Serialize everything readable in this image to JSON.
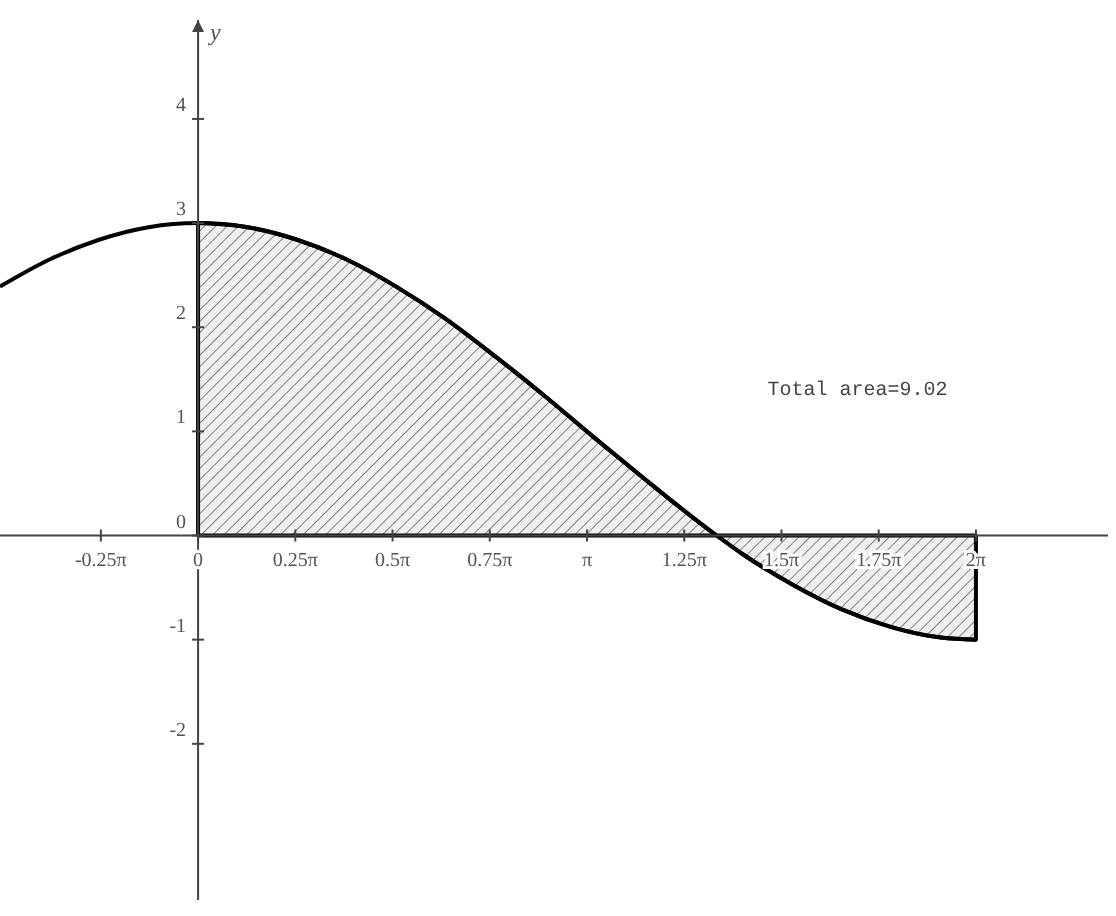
{
  "chart_data": {
    "type": "line",
    "ylabel": "y",
    "xlim": [
      -1.6,
      7.35
    ],
    "ylim": [
      -3.5,
      4.95
    ],
    "xticks": [
      {
        "value": -0.7854,
        "label": "-0.25π"
      },
      {
        "value": 0,
        "label": "0"
      },
      {
        "value": 0.7854,
        "label": "0.25π"
      },
      {
        "value": 1.5708,
        "label": "0.5π"
      },
      {
        "value": 2.3562,
        "label": "0.75π"
      },
      {
        "value": 3.1416,
        "label": "π"
      },
      {
        "value": 3.927,
        "label": "1.25π"
      },
      {
        "value": 4.7124,
        "label": "1.5π"
      },
      {
        "value": 5.4978,
        "label": "1.75π"
      },
      {
        "value": 6.2832,
        "label": "2π"
      }
    ],
    "yticks": [
      -2,
      -1,
      0,
      1,
      2,
      3,
      4
    ],
    "grid": false,
    "marker": "none",
    "line_style": "solid",
    "annotations": [
      "Total area=9.02"
    ],
    "series": [
      {
        "type": "area",
        "color": "#000000",
        "x": [
          0,
          0.4,
          0.8,
          1.2,
          1.6,
          2.0,
          2.4,
          2.8,
          3.2,
          3.6,
          4.0,
          4.189,
          4.4,
          4.8,
          5.2,
          5.6,
          6.0,
          6.2832
        ],
        "values": [
          3,
          2.96,
          2.84,
          2.65,
          2.39,
          2.08,
          1.72,
          1.34,
          0.94,
          0.55,
          0.17,
          0,
          -0.18,
          -0.47,
          -0.71,
          -0.88,
          -0.98,
          -1
        ]
      },
      {
        "color": "#000000",
        "x": [
          -1.6,
          -1.2,
          -0.8,
          -0.4,
          0,
          0.4,
          0.8,
          1.2,
          1.6,
          2.0,
          2.4,
          2.8,
          3.2,
          3.6,
          4.0,
          4.189,
          4.4,
          4.8,
          5.2,
          5.6,
          6.0,
          6.2832
        ],
        "values": [
          2.39,
          2.65,
          2.84,
          2.96,
          3,
          2.96,
          2.84,
          2.65,
          2.39,
          2.08,
          1.72,
          1.34,
          0.94,
          0.55,
          0.17,
          0,
          -0.18,
          -0.47,
          -0.71,
          -0.88,
          -0.98,
          -1
        ]
      }
    ]
  }
}
